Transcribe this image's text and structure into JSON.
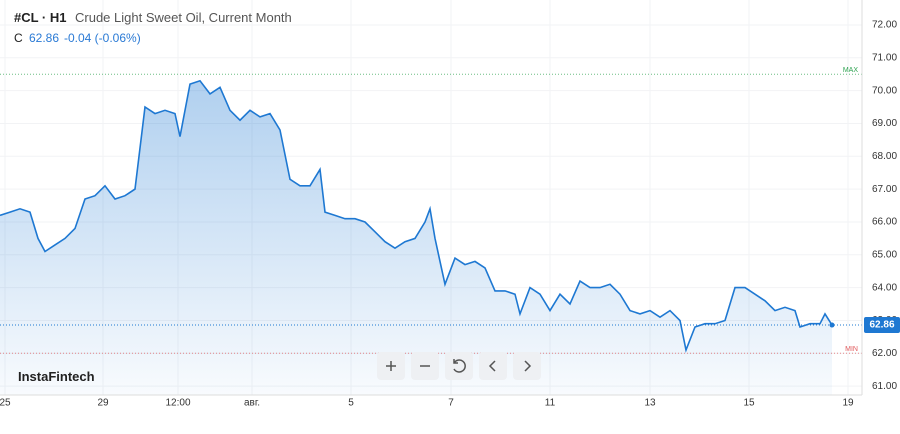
{
  "header": {
    "symbol": "#CL · H1",
    "name": "Crude Light Sweet Oil, Current Month",
    "c_label": "C",
    "price": "62.86",
    "change": "-0.04 (-0.06%)",
    "watermark": "InstaFintech"
  },
  "chart_data": {
    "type": "area",
    "color": "#1e78d2",
    "grid": true,
    "xlim": [
      0,
      431
    ],
    "ylim": [
      60.73,
      72.76
    ],
    "xticks": [
      {
        "value": 2.5,
        "label": "25"
      },
      {
        "value": 51.5,
        "label": "29"
      },
      {
        "value": 89,
        "label": "12:00"
      },
      {
        "value": 126,
        "label": "авг."
      },
      {
        "value": 175.5,
        "label": "5"
      },
      {
        "value": 225.5,
        "label": "7"
      },
      {
        "value": 275,
        "label": "11"
      },
      {
        "value": 325,
        "label": "13"
      },
      {
        "value": 374.5,
        "label": "15"
      },
      {
        "value": 424,
        "label": "19"
      }
    ],
    "yticks": [
      {
        "value": 61,
        "label": "61.00"
      },
      {
        "value": 62,
        "label": "62.00"
      },
      {
        "value": 63,
        "label": "63.00"
      },
      {
        "value": 64,
        "label": "64.00"
      },
      {
        "value": 65,
        "label": "65.00"
      },
      {
        "value": 66,
        "label": "66.00"
      },
      {
        "value": 67,
        "label": "67.00"
      },
      {
        "value": 68,
        "label": "68.00"
      },
      {
        "value": 69,
        "label": "69.00"
      },
      {
        "value": 70,
        "label": "70.00"
      },
      {
        "value": 71,
        "label": "71.00"
      },
      {
        "value": 72,
        "label": "72.00"
      }
    ],
    "x": [
      0,
      5,
      10,
      15,
      19,
      22.5,
      27.5,
      32.5,
      37.5,
      42.5,
      47.5,
      52.5,
      57.5,
      62.5,
      67.5,
      72.5,
      77.5,
      82.5,
      87.5,
      90,
      95,
      100,
      105,
      110,
      115,
      120,
      125,
      130,
      135,
      140,
      145,
      150,
      155,
      160,
      162.5,
      167.5,
      172.5,
      177.5,
      182.5,
      187.5,
      192.5,
      197.5,
      202.5,
      207.5,
      212.5,
      215,
      217.5,
      220,
      222.5,
      227.5,
      232.5,
      237.5,
      242.5,
      247.5,
      252.5,
      257.5,
      260,
      265,
      270,
      275,
      280,
      285,
      290,
      295,
      300,
      305,
      310,
      315,
      320,
      325,
      330,
      335,
      340,
      343,
      347.5,
      352.5,
      357.5,
      362.5,
      367.5,
      372.5,
      377.5,
      382.5,
      387.5,
      392.5,
      397.5,
      400,
      405,
      410,
      412.5,
      416
    ],
    "values": [
      66.2,
      66.3,
      66.4,
      66.3,
      65.5,
      65.1,
      65.3,
      65.5,
      65.8,
      66.7,
      66.8,
      67.1,
      66.7,
      66.8,
      67.0,
      69.5,
      69.3,
      69.4,
      69.3,
      68.6,
      70.2,
      70.3,
      69.9,
      70.1,
      69.4,
      69.1,
      69.4,
      69.2,
      69.3,
      68.8,
      67.3,
      67.1,
      67.1,
      67.6,
      66.3,
      66.2,
      66.1,
      66.1,
      66.0,
      65.7,
      65.4,
      65.2,
      65.4,
      65.5,
      66.0,
      66.4,
      65.5,
      64.8,
      64.1,
      64.9,
      64.7,
      64.8,
      64.6,
      63.9,
      63.9,
      63.8,
      63.2,
      64.0,
      63.8,
      63.3,
      63.8,
      63.5,
      64.2,
      64.0,
      64.0,
      64.1,
      63.8,
      63.3,
      63.2,
      63.3,
      63.1,
      63.3,
      63.0,
      62.1,
      62.8,
      62.9,
      62.9,
      63.0,
      64.0,
      64.0,
      63.8,
      63.6,
      63.3,
      63.4,
      63.3,
      62.8,
      62.9,
      62.9,
      63.2,
      62.86
    ],
    "max_line": {
      "value": 70.5,
      "label": "MAX"
    },
    "min_line": {
      "value": 62.0,
      "label": "MIN"
    },
    "last_price": 62.86
  }
}
